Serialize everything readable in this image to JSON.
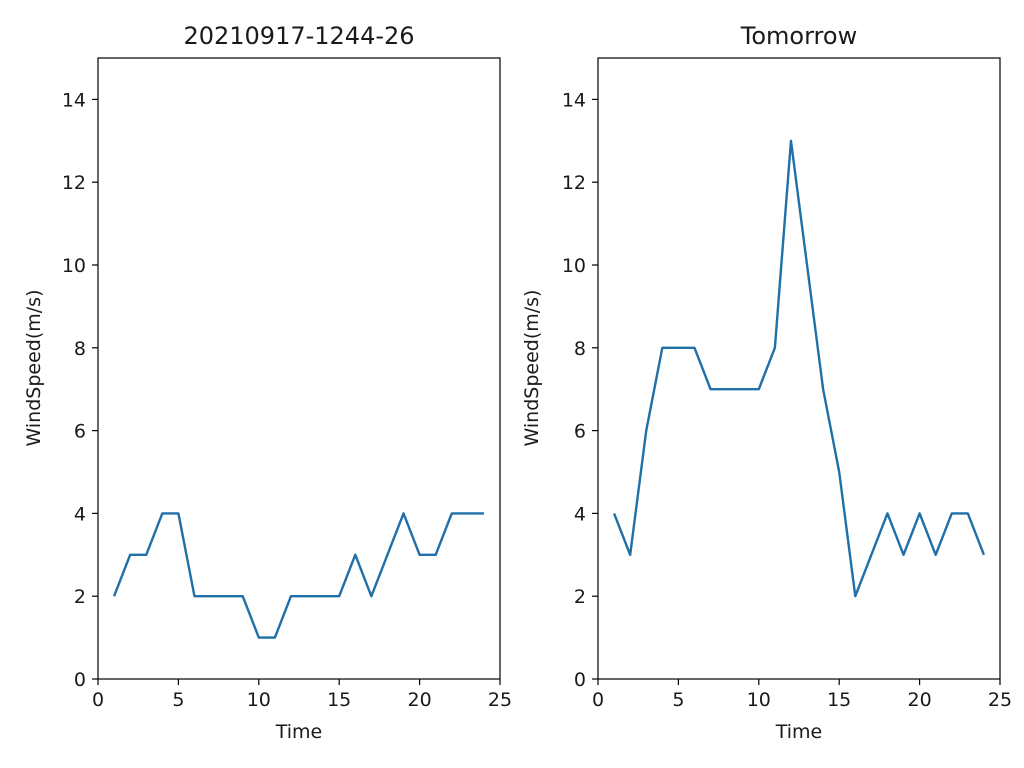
{
  "chart_data": [
    {
      "type": "line",
      "title": "20210917-1244-26",
      "xlabel": "Time",
      "ylabel": "WindSpeed(m/s)",
      "xlim": [
        0,
        25
      ],
      "ylim": [
        0,
        15
      ],
      "xticks": [
        0,
        5,
        10,
        15,
        20,
        25
      ],
      "yticks": [
        0,
        2,
        4,
        6,
        8,
        10,
        12,
        14
      ],
      "grid": false,
      "color": "#1f6fa8",
      "series": [
        {
          "x": [
            1,
            2,
            3,
            4,
            5,
            6,
            7,
            8,
            9,
            10,
            11,
            12,
            13,
            14,
            15,
            16,
            17,
            18,
            19,
            20,
            21,
            22,
            23,
            24
          ],
          "values": [
            2,
            3,
            3,
            4,
            4,
            2,
            2,
            2,
            2,
            1,
            1,
            2,
            2,
            2,
            2,
            3,
            2,
            3,
            4,
            3,
            3,
            4,
            4,
            4
          ]
        }
      ]
    },
    {
      "type": "line",
      "title": "Tomorrow",
      "xlabel": "Time",
      "ylabel": "WindSpeed(m/s)",
      "xlim": [
        0,
        25
      ],
      "ylim": [
        0,
        15
      ],
      "xticks": [
        0,
        5,
        10,
        15,
        20,
        25
      ],
      "yticks": [
        0,
        2,
        4,
        6,
        8,
        10,
        12,
        14
      ],
      "grid": false,
      "color": "#1f6fa8",
      "series": [
        {
          "x": [
            1,
            2,
            3,
            4,
            5,
            6,
            7,
            8,
            9,
            10,
            11,
            12,
            13,
            14,
            15,
            16,
            17,
            18,
            19,
            20,
            21,
            22,
            23,
            24
          ],
          "values": [
            4,
            3,
            6,
            8,
            8,
            8,
            7,
            7,
            7,
            7,
            8,
            13,
            10,
            7,
            5,
            2,
            3,
            4,
            3,
            4,
            3,
            4,
            4,
            3
          ]
        }
      ]
    }
  ]
}
